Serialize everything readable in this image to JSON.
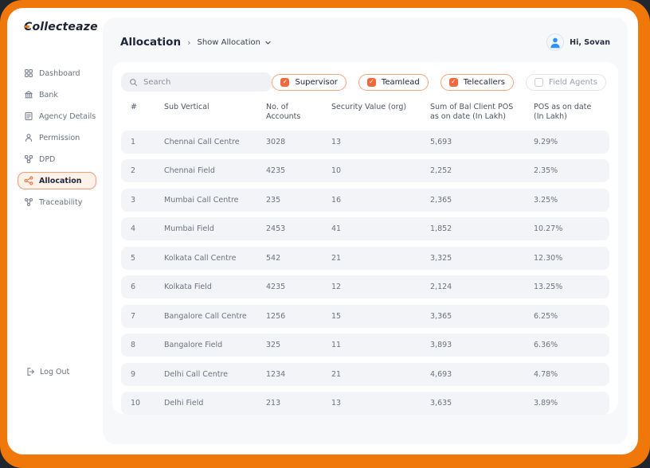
{
  "brand": {
    "name": "Collecteaze"
  },
  "sidebar": {
    "items": [
      {
        "label": "Dashboard",
        "icon": "dashboard-icon",
        "active": false
      },
      {
        "label": "Bank",
        "icon": "bank-icon",
        "active": false
      },
      {
        "label": "Agency Details",
        "icon": "document-icon",
        "active": false
      },
      {
        "label": "Permission",
        "icon": "person-icon",
        "active": false
      },
      {
        "label": "DPD",
        "icon": "dpd-icon",
        "active": false
      },
      {
        "label": "Allocation",
        "icon": "allocation-icon",
        "active": true
      },
      {
        "label": "Traceability",
        "icon": "traceability-icon",
        "active": false
      }
    ],
    "logout_label": "Log Out"
  },
  "header": {
    "title": "Allocation",
    "separator": "›",
    "breadcrumb": "Show Allocation",
    "user_greeting": "Hi, Sovan"
  },
  "toolbar": {
    "search_placeholder": "Search",
    "filters": [
      {
        "label": "Supervisor",
        "checked": true
      },
      {
        "label": "Teamlead",
        "checked": true
      },
      {
        "label": "Telecallers",
        "checked": true
      },
      {
        "label": "Field Agents",
        "checked": false
      }
    ]
  },
  "table": {
    "columns": [
      "#",
      "Sub Vertical",
      "No. of Accounts",
      "Security Value (org)",
      "Sum of Bal Client POS as on date (In Lakh)",
      "POS as on date (In Lakh)"
    ],
    "rows": [
      [
        "1",
        "Chennai Call Centre",
        "3028",
        "13",
        "5,693",
        "9.29%"
      ],
      [
        "2",
        "Chennai Field",
        "4235",
        "10",
        "2,252",
        "2.35%"
      ],
      [
        "3",
        "Mumbai Call Centre",
        "235",
        "16",
        "2,365",
        "3.25%"
      ],
      [
        "4",
        "Mumbai Field",
        "2453",
        "41",
        "1,852",
        "10.27%"
      ],
      [
        "5",
        "Kolkata Call Centre",
        "542",
        "21",
        "3,325",
        "12.30%"
      ],
      [
        "6",
        "Kolkata Field",
        "4235",
        "12",
        "2,124",
        "13.25%"
      ],
      [
        "7",
        "Bangalore Call Centre",
        "1256",
        "15",
        "3,365",
        "6.25%"
      ],
      [
        "8",
        "Bangalore Field",
        "325",
        "11",
        "3,893",
        "6.36%"
      ],
      [
        "9",
        "Delhi Call Centre",
        "1234",
        "21",
        "4,693",
        "4.78%"
      ],
      [
        "10",
        "Delhi Field",
        "213",
        "13",
        "3,635",
        "3.89%"
      ]
    ]
  },
  "colors": {
    "frame_orange": "#F0780B",
    "accent_orange": "#F2683C",
    "active_pill_bg": "#FDF2E9",
    "active_pill_border": "#F29D72",
    "panel_bg": "#F7F8F9",
    "row_bg": "#F3F4F7",
    "text_dark": "#20263B",
    "text_gray": "#6A7080",
    "avatar_blue": "#2E90FA"
  }
}
